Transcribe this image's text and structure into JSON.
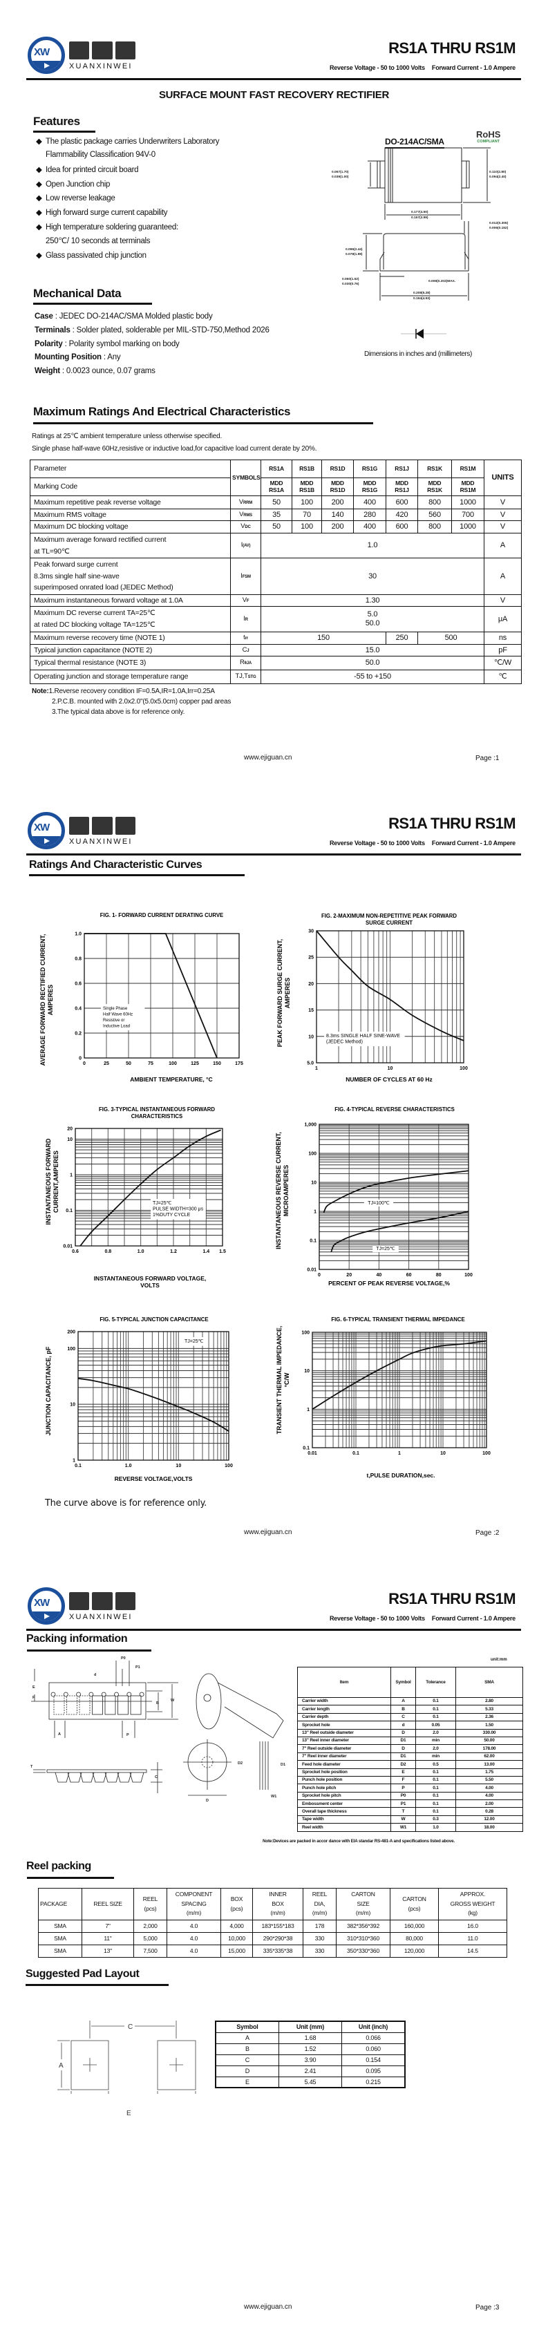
{
  "header": {
    "logo_cn": "烜芯微",
    "logo_en": "XUANXINWEI",
    "logo_mark": "XW",
    "title": "RS1A THRU RS1M",
    "reverse_voltage": "Reverse Voltage - 50 to 1000 Volts",
    "forward_current": "Forward Current - 1.0 Ampere",
    "brand_color": "#1b4f9b"
  },
  "page1": {
    "doc_title": "SURFACE MOUNT FAST RECOVERY RECTIFIER",
    "features_heading": "Features",
    "features": [
      "The plastic package carries Underwriters Laboratory",
      "Flammability Classification 94V-0",
      "Idea for printed circuit board",
      "Open Junction chip",
      "Low reverse leakage",
      "High forward surge current capability",
      "High temperature soldering guaranteed:",
      "250℃/ 10 seconds at terminals",
      "Glass passivated chip junction"
    ],
    "package_name": "DO-214AC/SMA",
    "rohs": "RoHS",
    "rohs_sub": "COMPLIANT",
    "dims": {
      "lead_h": [
        "0.067(1.70)",
        "0.039(1.00)"
      ],
      "body_h": [
        "0.110(2.80)",
        "0.094(2.40)"
      ],
      "body_w": [
        "0.177(4.50)",
        "0.157(3.99)"
      ],
      "lead_t": [
        "0.012(0.305)",
        "0.006(0.152)"
      ],
      "height": [
        "0.096(2.44)",
        "0.078(1.98)"
      ],
      "lead_l": [
        "0.060(1.52)",
        "0.030(0.76)"
      ],
      "standoff": "0.008(0.203)MAX.",
      "total_w": [
        "0.208(5.28)",
        "0.194(4.93)"
      ]
    },
    "dimensions_note": "Dimensions in inches and (millimeters)",
    "mech_heading": "Mechanical Data",
    "mech": [
      {
        "label": "Case",
        "value": " : JEDEC DO-214AC/SMA Molded plastic body"
      },
      {
        "label": "Terminals",
        "value": " : Solder plated, solderable per MIL-STD-750,Method 2026"
      },
      {
        "label": "Polarity",
        "value": " : Polarity symbol  marking on body"
      },
      {
        "label": "Mounting Position",
        "value": " : Any"
      },
      {
        "label": "Weight",
        "value": " : 0.0023 ounce, 0.07 grams"
      }
    ],
    "ratings_heading": "Maximum Ratings And Electrical Characteristics",
    "ratings_note1": "Ratings at 25℃ ambient temperature unless otherwise specified.",
    "ratings_note2": "Single phase half-wave 60Hz,resistive or inductive load,for capacitive load current derate by 20%.",
    "table": {
      "param_header": "Parameter",
      "marking_header": "Marking Code",
      "symbols_header": "SYMBOLS",
      "units_header": "UNITS",
      "parts": [
        "RS1A",
        "RS1B",
        "RS1D",
        "RS1G",
        "RS1J",
        "RS1K",
        "RS1M"
      ],
      "marking": [
        "MDD RS1A",
        "MDD RS1B",
        "MDD RS1D",
        "MDD RS1G",
        "MDD RS1J",
        "MDD RS1K",
        "MDD RS1M"
      ],
      "rows": [
        {
          "param": [
            "Maximum repetitive peak reverse voltage"
          ],
          "sym": [
            "V",
            "RRM"
          ],
          "values": [
            "50",
            "100",
            "200",
            "400",
            "600",
            "800",
            "1000"
          ],
          "unit": "V"
        },
        {
          "param": [
            "Maximum RMS voltage"
          ],
          "sym": [
            "V",
            "RMS"
          ],
          "values": [
            "35",
            "70",
            "140",
            "280",
            "420",
            "560",
            "700"
          ],
          "unit": "V"
        },
        {
          "param": [
            "Maximum DC blocking voltage"
          ],
          "sym": [
            "V",
            "DC"
          ],
          "values": [
            "50",
            "100",
            "200",
            "400",
            "600",
            "800",
            "1000"
          ],
          "unit": "V"
        },
        {
          "param": [
            "Maximum average forward rectified current",
            "at TL=90℃"
          ],
          "sym": [
            "I",
            "(AV)"
          ],
          "values": [
            "1.0"
          ],
          "unit": "A"
        },
        {
          "param": [
            "Peak forward surge current",
            "8.3ms single half sine-wave",
            "superimposed onrated load (JEDEC Method)"
          ],
          "sym": [
            "I",
            "FSM"
          ],
          "values": [
            "30"
          ],
          "unit": "A"
        },
        {
          "param": [
            "Maximum instantaneous forward voltage at 1.0A"
          ],
          "sym": [
            "V",
            "F"
          ],
          "values": [
            "1.30"
          ],
          "unit": "V"
        },
        {
          "param": [
            "Maximum DC reverse current      TA=25℃",
            "at rated DC blocking voltage      TA=125℃"
          ],
          "sym": [
            "I",
            "R"
          ],
          "values": [
            "5.0\n50.0"
          ],
          "unit": "μA"
        },
        {
          "param": [
            "Maximum reverse recovery time     (NOTE 1)"
          ],
          "sym": [
            "t",
            "rr"
          ],
          "values": [
            "150",
            "250",
            "500"
          ],
          "unit": "ns"
        },
        {
          "param": [
            "Typical junction capacitance (NOTE 2)"
          ],
          "sym": [
            "C",
            "J"
          ],
          "values": [
            "15.0"
          ],
          "unit": "pF"
        },
        {
          "param": [
            "Typical thermal resistance (NOTE 3)"
          ],
          "sym": [
            "R",
            "θJA"
          ],
          "values": [
            "50.0"
          ],
          "unit": "℃/W"
        },
        {
          "param": [
            "Operating junction and storage temperature range"
          ],
          "sym": [
            "TJ,T",
            "STG"
          ],
          "values": [
            "-55 to +150"
          ],
          "unit": "℃"
        }
      ]
    },
    "notes_label": "Note:",
    "notes": [
      "1.Reverse recovery condition IF=0.5A,IR=1.0A,Irr=0.25A",
      "2.P.C.B. mounted with 2.0x2.0\"(5.0x5.0cm) copper pad areas",
      "3.The typical data above is for reference only."
    ]
  },
  "page2": {
    "heading": "Ratings And Characteristic Curves",
    "reference_note": "The curve above is for reference only."
  },
  "chart_data": [
    {
      "type": "line",
      "title": [
        "FIG. 1- FORWARD CURRENT DERATING CURVE"
      ],
      "xlabel": [
        "AMBIENT TEMPERATURE, °C"
      ],
      "ylabel": [
        "AVERAGE FORWARD RECTIFIED CURRENT,",
        "AMPERES"
      ],
      "xscale": "linear",
      "yscale": "linear",
      "xlim": [
        0,
        175
      ],
      "ylim": [
        0,
        1.0
      ],
      "xticks": [
        0,
        25,
        50,
        75,
        100,
        125,
        150,
        175
      ],
      "xticklabels": [
        "0",
        "25",
        "50",
        "75",
        "100",
        "125",
        "150",
        "175"
      ],
      "yticks": [
        0,
        0.2,
        0.4,
        0.6,
        0.8,
        1.0
      ],
      "yticklabels": [
        "0",
        "0.2",
        "0.4",
        "0.6",
        "0.8",
        "1.0"
      ],
      "grid": true,
      "annotation": [
        "Single Phase",
        "Half Wave 60Hz",
        "Resistive or",
        "Inductive Load"
      ],
      "series": [
        {
          "x": [
            0,
            92,
            150
          ],
          "y": [
            1.0,
            1.0,
            0
          ]
        }
      ]
    },
    {
      "type": "line",
      "title": [
        "FIG. 2-MAXIMUM NON-REPETITIVE PEAK FORWARD",
        "SURGE CURRENT"
      ],
      "xlabel": [
        "NUMBER OF CYCLES AT 60 Hz"
      ],
      "ylabel": [
        "PEAK  FORWARD SURGE CURRENT,",
        "AMPERES"
      ],
      "xscale": "log",
      "yscale": "linear",
      "xlim": [
        1,
        100
      ],
      "ylim": [
        5,
        30
      ],
      "xticks": [
        1,
        10,
        100
      ],
      "xticklabels": [
        "1",
        "10",
        "100"
      ],
      "yticks": [
        5,
        10,
        15,
        20,
        25,
        30
      ],
      "yticklabels": [
        "5.0",
        "10",
        "15",
        "20",
        "25",
        "30"
      ],
      "grid": true,
      "annotation": [
        "8.3ms SINGLE HALF SINE-WAVE",
        "(JEDEC Method)"
      ],
      "series": [
        {
          "x": [
            1,
            2,
            3,
            5,
            10,
            20,
            50,
            100
          ],
          "y": [
            30,
            25,
            22.5,
            19.5,
            17,
            14,
            11,
            9.2
          ]
        }
      ]
    },
    {
      "type": "line",
      "title": [
        "FIG. 3-TYPICAL INSTANTANEOUS FORWARD",
        "CHARACTERISTICS"
      ],
      "xlabel": [
        "INSTANTANEOUS FORWARD VOLTAGE,",
        "VOLTS"
      ],
      "ylabel": [
        "INSTANTANEOUS FORWARD",
        "CURRENT,AMPERES"
      ],
      "xscale": "linear",
      "yscale": "log",
      "xlim": [
        0.6,
        1.5
      ],
      "ylim": [
        0.01,
        20
      ],
      "xticks": [
        0.6,
        0.8,
        1.0,
        1.2,
        1.4,
        1.5
      ],
      "xticklabels": [
        "0.6",
        "0.8",
        "1.0",
        "1.2",
        "1.4",
        "1.5"
      ],
      "yticks": [
        0.01,
        0.1,
        1,
        10,
        20
      ],
      "yticklabels": [
        "0.01",
        "0.1",
        "1",
        "10",
        "20"
      ],
      "grid": true,
      "annotation": [
        "TJ=25℃",
        "PULSE WIDTH=300 μs",
        "1%DUTY CYCLE"
      ],
      "series": [
        {
          "x": [
            0.63,
            0.7,
            0.8,
            0.9,
            1.0,
            1.1,
            1.2,
            1.3,
            1.4,
            1.49
          ],
          "y": [
            0.01,
            0.025,
            0.07,
            0.2,
            0.55,
            1.4,
            3,
            6.5,
            12,
            18
          ]
        }
      ]
    },
    {
      "type": "line",
      "title": [
        "FIG. 4-TYPICAL REVERSE CHARACTERISTICS"
      ],
      "xlabel": [
        "PERCENT OF PEAK REVERSE VOLTAGE,%"
      ],
      "ylabel": [
        "INSTANTANEOUS REVERSE CURRENT,",
        "MICROAMPERES"
      ],
      "xscale": "linear",
      "yscale": "log",
      "xlim": [
        0,
        100
      ],
      "ylim": [
        0.01,
        1000
      ],
      "xticks": [
        0,
        20,
        40,
        60,
        80,
        100
      ],
      "xticklabels": [
        "0",
        "20",
        "40",
        "60",
        "80",
        "100"
      ],
      "yticks": [
        0.01,
        0.1,
        1,
        10,
        100,
        1000
      ],
      "yticklabels": [
        "0.01",
        "0.1",
        "1",
        "10",
        "100",
        "1,000"
      ],
      "grid": true,
      "series": [
        {
          "name": "TJ=100℃",
          "x": [
            3,
            5,
            10,
            20,
            30,
            40,
            60,
            80,
            100
          ],
          "y": [
            0.9,
            1.5,
            2.2,
            4,
            6.5,
            9,
            14,
            19,
            25
          ]
        },
        {
          "name": "TJ=25℃",
          "x": [
            8,
            10,
            15,
            20,
            30,
            40,
            60,
            80,
            100
          ],
          "y": [
            0.04,
            0.07,
            0.1,
            0.13,
            0.19,
            0.25,
            0.4,
            0.6,
            1.0
          ]
        }
      ]
    },
    {
      "type": "line",
      "title": [
        "FIG. 5-TYPICAL JUNCTION CAPACITANCE"
      ],
      "xlabel": [
        "REVERSE VOLTAGE,VOLTS"
      ],
      "ylabel": [
        "JUNCTION CAPACITANCE, pF"
      ],
      "xscale": "log",
      "yscale": "log",
      "xlim": [
        0.1,
        100
      ],
      "ylim": [
        1,
        200
      ],
      "xticks": [
        0.1,
        1,
        10,
        100
      ],
      "xticklabels": [
        "0.1",
        "1.0",
        "10",
        "100"
      ],
      "yticks": [
        1,
        10,
        100,
        200
      ],
      "yticklabels": [
        "1",
        "10",
        "100",
        "200"
      ],
      "grid": true,
      "annotation": [
        "TJ=25℃"
      ],
      "series": [
        {
          "x": [
            0.1,
            0.2,
            0.5,
            1,
            2,
            5,
            10,
            20,
            50,
            100
          ],
          "y": [
            29,
            26.5,
            22,
            19,
            15.5,
            11.5,
            9,
            7,
            4.8,
            3.3
          ]
        }
      ]
    },
    {
      "type": "line",
      "title": [
        "FIG. 6-TYPICAL TRANSIENT THERMAL IMPEDANCE"
      ],
      "xlabel": [
        "t,PULSE DURATION,sec."
      ],
      "ylabel": [
        "TRANSIENT THERMAL IMPEDANCE,",
        "°C/W"
      ],
      "xscale": "log",
      "yscale": "log",
      "xlim": [
        0.01,
        100
      ],
      "ylim": [
        0.1,
        100
      ],
      "xticks": [
        0.01,
        0.1,
        1,
        10,
        100
      ],
      "xticklabels": [
        "0.01",
        "0.1",
        "1",
        "10",
        "100"
      ],
      "yticks": [
        0.1,
        1,
        10,
        100
      ],
      "yticklabels": [
        "0.1",
        "1",
        "10",
        "100"
      ],
      "grid": true,
      "series": [
        {
          "x": [
            0.01,
            0.03,
            0.1,
            0.3,
            1,
            2,
            5,
            10,
            30,
            100
          ],
          "y": [
            1,
            2.2,
            5,
            10,
            20,
            29,
            39,
            45,
            50,
            60
          ]
        }
      ]
    }
  ],
  "page3": {
    "packing_heading": "Packing information",
    "tape_labels": {
      "P0": "P0",
      "P1": "P1",
      "d": "d",
      "E": "E",
      "F": "F",
      "B": "B",
      "W": "W",
      "A": "A",
      "P": "P",
      "T": "T",
      "C": "C",
      "D": "D",
      "D2": "D2",
      "D1": "D1",
      "W1": "W1"
    },
    "unit": "unit:mm",
    "pack_table": {
      "headers": [
        "Item",
        "Symbol",
        "Tolerance",
        "SMA"
      ],
      "rows": [
        [
          "Carrier width",
          "A",
          "0.1",
          "2.80"
        ],
        [
          "Carrier length",
          "B",
          "0.1",
          "5.33"
        ],
        [
          "Carrier depth",
          "C",
          "0.1",
          "2.36"
        ],
        [
          "Sprocket hole",
          "d",
          "0.05",
          "1.50"
        ],
        [
          "13\" Reel outside diameter",
          "D",
          "2.0",
          "330.00"
        ],
        [
          "13\" Reel inner diameter",
          "D1",
          "min",
          "50.00"
        ],
        [
          "7\" Reel outside diameter",
          "D",
          "2.0",
          "178.00"
        ],
        [
          "7\" Reel inner diameter",
          "D1",
          "min",
          "62.00"
        ],
        [
          "Feed hole diameter",
          "D2",
          "0.5",
          "13.00"
        ],
        [
          "Sprocket hole position",
          "E",
          "0.1",
          "1.75"
        ],
        [
          "Punch hole position",
          "F",
          "0.1",
          "5.50"
        ],
        [
          "Punch hole pitch",
          "P",
          "0.1",
          "4.00"
        ],
        [
          "Sprocket hole pitch",
          "P0",
          "0.1",
          "4.00"
        ],
        [
          "Embossment center",
          "P1",
          "0.1",
          "2.00"
        ],
        [
          "Overall tape thickness",
          "T",
          "0.1",
          "0.28"
        ],
        [
          "Tape width",
          "W",
          "0.3",
          "12.00"
        ],
        [
          "Reel width",
          "W1",
          "1.0",
          "18.00"
        ]
      ]
    },
    "pack_note": "Note:Devices are packed in accor dance with EIA standar RS-481-A and specifications listed above.",
    "reel_heading": "Reel packing",
    "reel_table": {
      "headers": [
        [
          "PACKAGE"
        ],
        [
          "REEL SIZE"
        ],
        [
          "REEL",
          "(pcs)"
        ],
        [
          "COMPONENT",
          "SPACING",
          "(m/m)"
        ],
        [
          "BOX",
          "(pcs)"
        ],
        [
          "INNER",
          "BOX",
          "(m/m)"
        ],
        [
          "REEL",
          "DIA,",
          "(m/m)"
        ],
        [
          "CARTON",
          "SIZE",
          "(m/m)"
        ],
        [
          "CARTON",
          "(pcs)"
        ],
        [
          "APPROX.",
          "GROSS WEIGHT",
          "(kg)"
        ]
      ],
      "rows": [
        [
          "SMA",
          "7\"",
          "2,000",
          "4.0",
          "4,000",
          "183*155*183",
          "178",
          "382*356*392",
          "160,000",
          "16.0"
        ],
        [
          "SMA",
          "11\"",
          "5,000",
          "4.0",
          "10,000",
          "290*290*38",
          "330",
          "310*310*360",
          "80,000",
          "11.0"
        ],
        [
          "SMA",
          "13\"",
          "7,500",
          "4.0",
          "15,000",
          "335*335*38",
          "330",
          "350*330*360",
          "120,000",
          "14.5"
        ]
      ]
    },
    "pad_heading": "Suggested Pad Layout",
    "pad_labels": [
      "A",
      "B",
      "C",
      "D",
      "E"
    ],
    "pad_table": {
      "headers": [
        "Symbol",
        "Unit (mm)",
        "Unit (inch)"
      ],
      "rows": [
        [
          "A",
          "1.68",
          "0.066"
        ],
        [
          "B",
          "1.52",
          "0.060"
        ],
        [
          "C",
          "3.90",
          "0.154"
        ],
        [
          "D",
          "2.41",
          "0.095"
        ],
        [
          "E",
          "5.45",
          "0.215"
        ]
      ]
    }
  },
  "footer": {
    "website": "www.ejiguan.cn",
    "pages": [
      "Page :1",
      "Page :2",
      "Page :3"
    ]
  }
}
